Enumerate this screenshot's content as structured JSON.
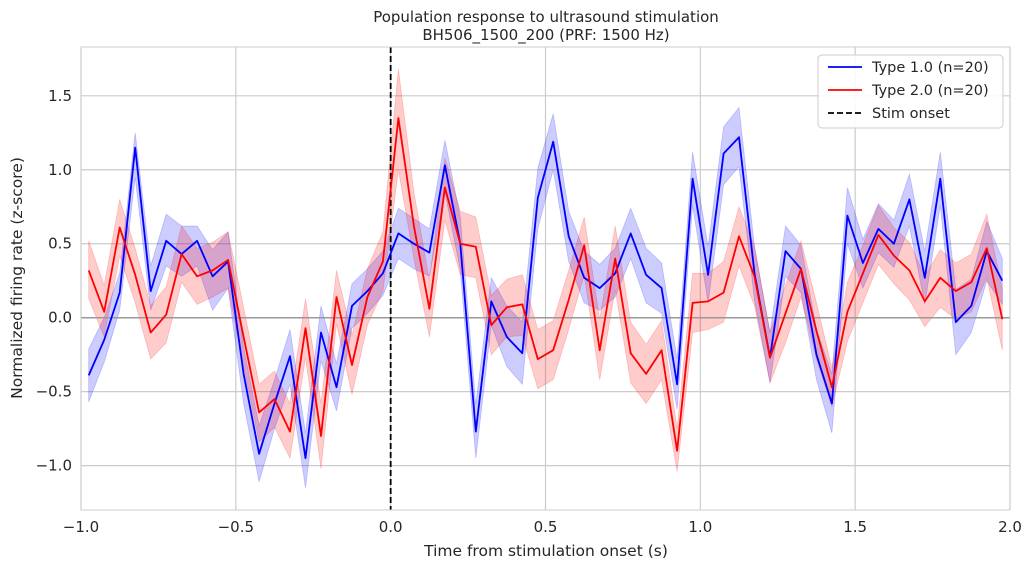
{
  "chart_data": {
    "type": "line",
    "title": "Population response to ultrasound stimulation",
    "subtitle": "BH506_1500_200 (PRF: 1500 Hz)",
    "xlabel": "Time from stimulation onset (s)",
    "ylabel": "Normalized firing rate (z-score)",
    "xlim": [
      -1.0,
      2.0
    ],
    "ylim": [
      -1.3,
      1.83
    ],
    "x_ticks": [
      -1.0,
      -0.5,
      0.0,
      0.5,
      1.0,
      1.5,
      2.0
    ],
    "x_tick_labels": [
      "−1.0",
      "−0.5",
      "0.0",
      "0.5",
      "1.0",
      "1.5",
      "2.0"
    ],
    "y_ticks": [
      -1.0,
      -0.5,
      0.0,
      0.5,
      1.0,
      1.5
    ],
    "y_tick_labels": [
      "−1.0",
      "−0.5",
      "0.0",
      "0.5",
      "1.0",
      "1.5"
    ],
    "grid": true,
    "legend_position": "top-right",
    "x": [
      -0.975,
      -0.925,
      -0.875,
      -0.825,
      -0.775,
      -0.725,
      -0.675,
      -0.625,
      -0.575,
      -0.525,
      -0.475,
      -0.425,
      -0.375,
      -0.325,
      -0.275,
      -0.225,
      -0.175,
      -0.125,
      -0.075,
      -0.025,
      0.025,
      0.075,
      0.125,
      0.175,
      0.225,
      0.275,
      0.325,
      0.375,
      0.425,
      0.475,
      0.525,
      0.575,
      0.625,
      0.675,
      0.725,
      0.775,
      0.825,
      0.875,
      0.925,
      0.975,
      1.025,
      1.075,
      1.125,
      1.175,
      1.225,
      1.275,
      1.325,
      1.375,
      1.425,
      1.475,
      1.525,
      1.575,
      1.625,
      1.675,
      1.725,
      1.775,
      1.825,
      1.875,
      1.925,
      1.975
    ],
    "series": [
      {
        "name": "Type 1.0 (n=20)",
        "color": "#0000ff",
        "values": [
          -0.39,
          -0.15,
          0.17,
          1.15,
          0.18,
          0.52,
          0.43,
          0.52,
          0.28,
          0.38,
          -0.38,
          -0.92,
          -0.58,
          -0.26,
          -0.95,
          -0.1,
          -0.47,
          0.08,
          0.18,
          0.3,
          0.57,
          0.5,
          0.44,
          1.03,
          0.5,
          -0.77,
          0.11,
          -0.13,
          -0.24,
          0.81,
          1.19,
          0.55,
          0.27,
          0.2,
          0.3,
          0.57,
          0.29,
          0.2,
          -0.45,
          0.94,
          0.29,
          1.11,
          1.22,
          0.3,
          -0.27,
          0.45,
          0.33,
          -0.25,
          -0.58,
          0.69,
          0.37,
          0.6,
          0.5,
          0.8,
          0.27,
          0.94,
          -0.03,
          0.08,
          0.45,
          0.25
        ],
        "lower": [
          -0.57,
          -0.3,
          0.05,
          0.95,
          0.05,
          0.35,
          0.28,
          0.35,
          0.05,
          0.2,
          -0.58,
          -1.11,
          -0.75,
          -0.45,
          -1.15,
          -0.29,
          -0.63,
          -0.07,
          0.03,
          0.15,
          0.4,
          0.33,
          0.28,
          0.85,
          0.32,
          -0.95,
          -0.05,
          -0.33,
          -0.45,
          0.6,
          1.0,
          0.38,
          0.1,
          0.05,
          0.14,
          0.4,
          0.1,
          0.03,
          -0.62,
          0.76,
          0.1,
          0.9,
          1.02,
          0.12,
          -0.44,
          0.28,
          0.17,
          -0.42,
          -0.78,
          0.5,
          0.2,
          0.44,
          0.34,
          0.62,
          0.09,
          0.76,
          -0.25,
          -0.1,
          0.25,
          0.09
        ],
        "upper": [
          -0.21,
          0.0,
          0.3,
          1.25,
          0.35,
          0.7,
          0.62,
          0.62,
          0.46,
          0.58,
          -0.2,
          -0.73,
          -0.42,
          -0.08,
          -0.78,
          0.08,
          -0.31,
          0.23,
          0.33,
          0.45,
          0.74,
          0.67,
          0.6,
          1.2,
          0.68,
          -0.59,
          0.27,
          0.08,
          -0.03,
          1.01,
          1.38,
          0.72,
          0.45,
          0.36,
          0.47,
          0.74,
          0.47,
          0.37,
          -0.28,
          1.12,
          0.48,
          1.29,
          1.42,
          0.48,
          -0.1,
          0.62,
          0.49,
          -0.08,
          -0.38,
          0.88,
          0.53,
          0.77,
          0.66,
          0.97,
          0.45,
          1.12,
          0.19,
          0.26,
          0.65,
          0.4
        ]
      },
      {
        "name": "Type 2.0 (n=20)",
        "color": "#ff0000",
        "values": [
          0.32,
          0.04,
          0.61,
          0.29,
          -0.1,
          0.02,
          0.43,
          0.28,
          0.32,
          0.39,
          -0.13,
          -0.64,
          -0.55,
          -0.77,
          -0.07,
          -0.8,
          0.14,
          -0.32,
          0.14,
          0.38,
          1.35,
          0.62,
          0.06,
          0.88,
          0.5,
          0.48,
          -0.05,
          0.07,
          0.09,
          -0.28,
          -0.22,
          0.12,
          0.49,
          -0.22,
          0.4,
          -0.24,
          -0.38,
          -0.22,
          -0.9,
          0.1,
          0.11,
          0.17,
          0.55,
          0.28,
          -0.27,
          0.03,
          0.33,
          -0.09,
          -0.47,
          0.04,
          0.3,
          0.56,
          0.42,
          0.32,
          0.11,
          0.27,
          0.18,
          0.24,
          0.47,
          -0.01
        ],
        "lower": [
          0.13,
          -0.13,
          0.42,
          0.1,
          -0.28,
          -0.17,
          0.24,
          0.09,
          0.14,
          0.2,
          -0.33,
          -0.84,
          -0.74,
          -0.95,
          -0.27,
          -1.02,
          -0.04,
          -0.52,
          -0.05,
          0.18,
          1.0,
          0.4,
          -0.13,
          0.66,
          0.29,
          0.27,
          -0.25,
          -0.13,
          -0.12,
          -0.48,
          -0.42,
          -0.08,
          0.29,
          -0.42,
          0.19,
          -0.44,
          -0.58,
          -0.42,
          -1.04,
          -0.1,
          -0.08,
          -0.03,
          0.35,
          0.08,
          -0.44,
          -0.17,
          0.14,
          -0.28,
          -0.6,
          -0.16,
          0.1,
          0.36,
          0.23,
          0.12,
          -0.06,
          0.07,
          -0.01,
          0.04,
          0.27,
          -0.22
        ],
        "upper": [
          0.52,
          0.22,
          0.8,
          0.47,
          0.08,
          0.21,
          0.62,
          0.47,
          0.51,
          0.58,
          0.07,
          -0.45,
          -0.36,
          -0.58,
          0.13,
          -0.58,
          0.32,
          -0.12,
          0.33,
          0.58,
          1.68,
          0.85,
          0.25,
          1.08,
          0.72,
          0.68,
          0.15,
          0.26,
          0.29,
          -0.08,
          -0.02,
          0.32,
          0.68,
          -0.01,
          0.62,
          -0.03,
          -0.18,
          -0.02,
          -0.75,
          0.3,
          0.3,
          0.38,
          0.75,
          0.48,
          -0.1,
          0.22,
          0.52,
          0.1,
          -0.34,
          0.24,
          0.49,
          0.76,
          0.61,
          0.51,
          0.28,
          0.46,
          0.37,
          0.43,
          0.7,
          0.19
        ]
      }
    ],
    "vline": {
      "x": 0.0,
      "label": "Stim onset",
      "color": "#000000"
    },
    "hline": {
      "y": 0.0,
      "color": "#999999"
    },
    "legend": [
      {
        "label": "Type 1.0 (n=20)",
        "color": "#0000ff",
        "style": "solid"
      },
      {
        "label": "Type 2.0 (n=20)",
        "color": "#ff0000",
        "style": "solid"
      },
      {
        "label": "Stim onset",
        "color": "#000000",
        "style": "dashed"
      }
    ]
  }
}
